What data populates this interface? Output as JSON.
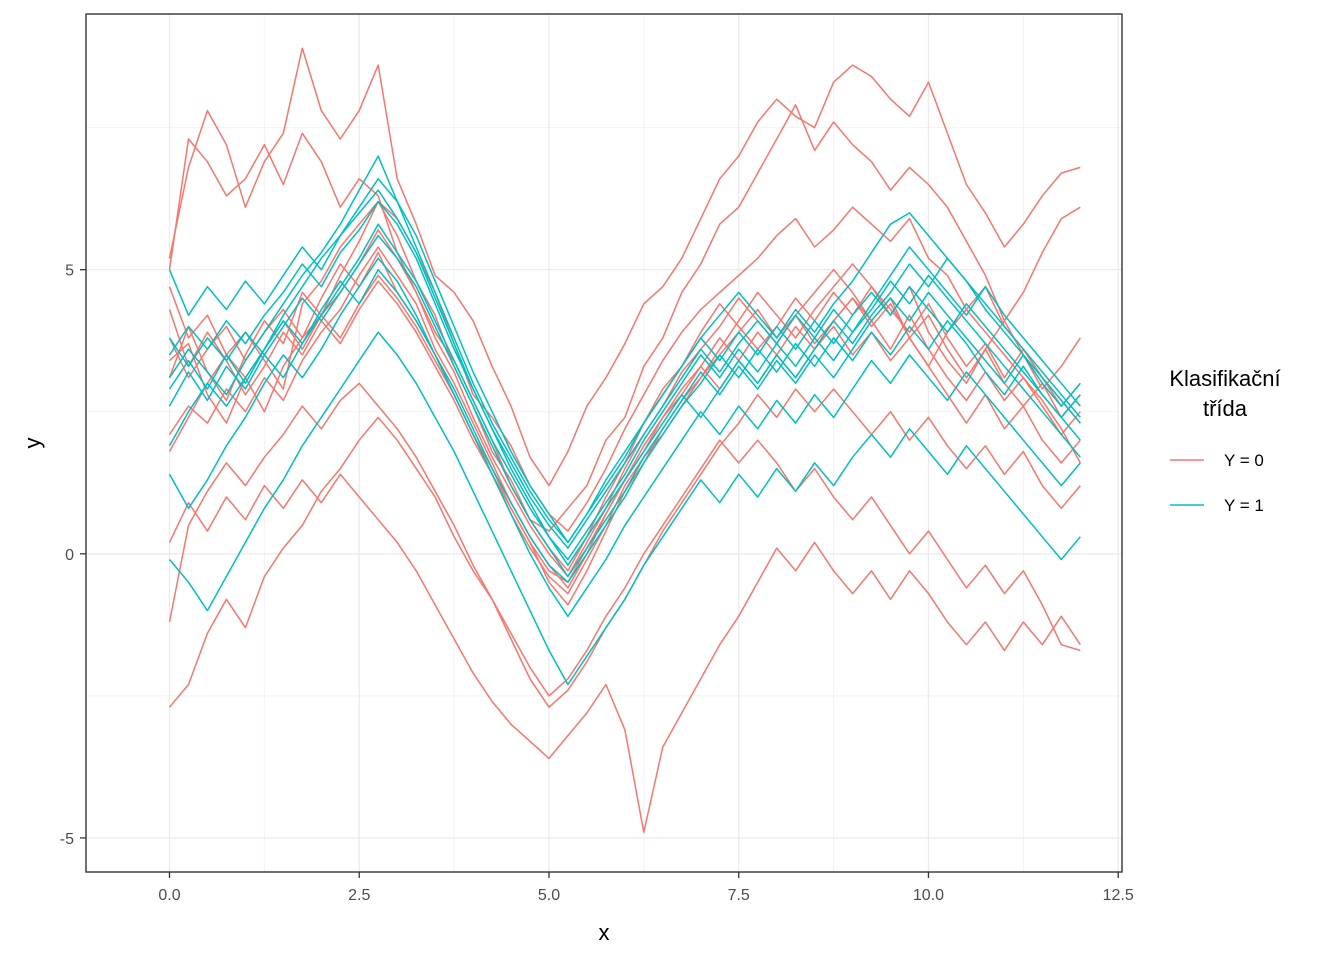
{
  "chart_data": {
    "type": "line",
    "xlabel": "x",
    "ylabel": "y",
    "xlim": [
      -1.1,
      12.55
    ],
    "ylim": [
      -5.6,
      9.5
    ],
    "x_ticks": [
      0,
      2.5,
      5,
      7.5,
      10,
      12.5
    ],
    "x_tick_labels": [
      "0.0",
      "2.5",
      "5.0",
      "7.5",
      "10.0",
      "12.5"
    ],
    "y_ticks": [
      -5,
      0,
      5
    ],
    "y_tick_labels": [
      "-5",
      "0",
      "5"
    ],
    "grid": true,
    "legend": {
      "title": "Klasifikační\ntřída",
      "position": "right",
      "entries": [
        {
          "label": "Y = 0",
          "color": "#F8766D"
        },
        {
          "label": "Y = 1",
          "color": "#00BFC4"
        }
      ]
    },
    "x_knots": [
      0,
      0.25,
      0.5,
      0.75,
      1,
      1.25,
      1.5,
      1.75,
      2,
      2.25,
      2.5,
      2.75,
      3,
      3.25,
      3.5,
      3.75,
      4,
      4.25,
      4.5,
      4.75,
      5,
      5.25,
      5.5,
      5.75,
      6,
      6.25,
      6.5,
      6.75,
      7,
      7.25,
      7.5,
      7.75,
      8,
      8.25,
      8.5,
      8.75,
      9,
      9.25,
      9.5,
      9.75,
      10,
      10.25,
      10.5,
      10.75,
      11,
      11.25,
      11.5,
      11.75,
      12
    ],
    "series": [
      {
        "class": "Y = 0",
        "values": [
          5.2,
          6.8,
          7.8,
          7.2,
          6.1,
          6.9,
          7.4,
          8.9,
          7.8,
          7.3,
          7.8,
          8.6,
          6.6,
          5.8,
          4.9,
          4.6,
          4.1,
          3.3,
          2.6,
          1.7,
          1.2,
          1.8,
          2.6,
          3.1,
          3.7,
          4.4,
          4.7,
          5.2,
          5.9,
          6.6,
          7.0,
          7.6,
          8.0,
          7.7,
          7.5,
          8.3,
          8.6,
          8.4,
          8.0,
          7.7,
          8.3,
          7.4,
          6.5,
          6.0,
          5.4,
          5.8,
          6.3,
          6.7,
          6.8
        ]
      },
      {
        "class": "Y = 0",
        "values": [
          5.0,
          7.3,
          6.9,
          6.3,
          6.6,
          7.2,
          6.5,
          7.4,
          6.9,
          6.1,
          6.6,
          6.3,
          5.3,
          4.6,
          3.9,
          3.4,
          2.7,
          2.0,
          1.2,
          0.6,
          0.4,
          0.8,
          1.2,
          2.0,
          2.4,
          3.3,
          3.8,
          4.6,
          5.1,
          5.8,
          6.1,
          6.7,
          7.3,
          7.9,
          7.1,
          7.6,
          7.2,
          6.9,
          6.4,
          6.8,
          6.5,
          6.1,
          5.5,
          4.9,
          4.1,
          4.6,
          5.3,
          5.9,
          6.1
        ]
      },
      {
        "class": "Y = 0",
        "values": [
          4.7,
          3.8,
          4.2,
          3.5,
          3.9,
          3.4,
          2.9,
          4.4,
          4.8,
          5.4,
          5.8,
          6.2,
          5.9,
          5.3,
          4.6,
          3.7,
          2.8,
          2.4,
          1.9,
          1.2,
          0.7,
          0.4,
          0.9,
          1.5,
          2.2,
          2.8,
          3.4,
          3.9,
          4.3,
          4.6,
          4.9,
          5.2,
          5.6,
          5.9,
          5.4,
          5.7,
          6.1,
          5.8,
          5.5,
          5.9,
          5.2,
          4.9,
          4.3,
          4.7,
          4.0,
          3.6,
          3.1,
          2.7,
          2.3
        ]
      },
      {
        "class": "Y = 0",
        "values": [
          3.4,
          3.7,
          2.8,
          2.3,
          3.1,
          2.5,
          3.3,
          3.8,
          4.2,
          4.6,
          5.1,
          5.7,
          5.2,
          4.6,
          3.8,
          3.2,
          2.4,
          1.7,
          1.1,
          0.5,
          0.0,
          -0.4,
          0.2,
          0.8,
          1.5,
          2.1,
          2.6,
          3.2,
          3.6,
          4.0,
          4.5,
          4.1,
          3.7,
          4.2,
          4.6,
          5.0,
          4.6,
          4.1,
          4.5,
          3.8,
          3.3,
          3.9,
          4.3,
          3.9,
          3.5,
          3.1,
          2.7,
          2.2,
          1.6
        ]
      },
      {
        "class": "Y = 0",
        "values": [
          3.8,
          3.1,
          3.6,
          4.0,
          3.4,
          3.9,
          4.3,
          3.8,
          4.5,
          5.1,
          4.7,
          5.3,
          4.6,
          4.1,
          3.5,
          2.8,
          2.1,
          1.4,
          0.8,
          0.2,
          -0.5,
          -0.9,
          -0.3,
          0.4,
          1.1,
          1.6,
          2.2,
          2.7,
          3.1,
          3.6,
          4.1,
          4.6,
          4.2,
          3.8,
          4.3,
          4.7,
          5.1,
          4.7,
          4.2,
          4.7,
          3.9,
          3.4,
          3.0,
          3.6,
          4.1,
          3.5,
          2.9,
          3.3,
          3.8
        ]
      },
      {
        "class": "Y = 0",
        "values": [
          3.1,
          4.0,
          3.2,
          2.7,
          3.5,
          4.1,
          3.7,
          4.6,
          4.2,
          4.9,
          5.5,
          6.2,
          5.6,
          4.8,
          4.2,
          3.3,
          2.6,
          1.8,
          1.3,
          0.6,
          0.1,
          -0.3,
          0.3,
          1.0,
          1.6,
          2.3,
          2.9,
          3.3,
          3.9,
          4.4,
          4.0,
          3.6,
          4.0,
          4.5,
          4.1,
          4.6,
          4.2,
          4.7,
          4.3,
          3.9,
          4.4,
          3.8,
          3.3,
          3.7,
          3.1,
          3.6,
          3.1,
          2.6,
          3.0
        ]
      },
      {
        "class": "Y = 0",
        "values": [
          2.1,
          2.6,
          2.3,
          2.9,
          2.5,
          3.1,
          2.7,
          3.4,
          3.9,
          4.3,
          4.9,
          5.4,
          4.9,
          4.4,
          3.6,
          3.0,
          2.3,
          1.6,
          0.9,
          0.3,
          -0.2,
          -0.6,
          0.0,
          0.7,
          1.3,
          1.8,
          2.4,
          2.9,
          3.3,
          3.8,
          3.4,
          3.9,
          3.5,
          4.0,
          3.6,
          4.1,
          4.5,
          4.1,
          3.6,
          4.2,
          3.6,
          3.1,
          2.7,
          3.2,
          2.7,
          3.1,
          2.6,
          2.1,
          2.5
        ]
      },
      {
        "class": "Y = 0",
        "values": [
          4.3,
          3.3,
          3.9,
          3.4,
          2.8,
          3.3,
          3.9,
          3.5,
          4.1,
          3.7,
          4.3,
          4.8,
          4.4,
          3.9,
          3.3,
          2.7,
          2.0,
          1.4,
          0.7,
          0.1,
          -0.4,
          -0.7,
          -0.1,
          0.5,
          1.2,
          1.7,
          2.1,
          2.6,
          3.1,
          3.5,
          3.9,
          4.3,
          3.8,
          4.2,
          3.7,
          4.1,
          4.5,
          4.0,
          4.4,
          3.8,
          4.2,
          3.6,
          3.1,
          3.6,
          3.0,
          2.6,
          3.0,
          2.4,
          2.8
        ]
      },
      {
        "class": "Y = 0",
        "values": [
          1.8,
          2.4,
          3.0,
          3.5,
          3.1,
          3.6,
          4.1,
          3.6,
          4.2,
          3.8,
          4.4,
          4.9,
          4.5,
          4.0,
          3.4,
          2.8,
          2.1,
          1.5,
          0.8,
          0.2,
          -0.3,
          -0.5,
          0.1,
          0.7,
          1.3,
          1.9,
          2.4,
          2.8,
          3.3,
          2.9,
          3.4,
          3.0,
          3.5,
          3.1,
          3.6,
          4.0,
          3.5,
          3.9,
          3.4,
          3.8,
          3.3,
          2.8,
          2.3,
          2.8,
          2.2,
          2.6,
          2.0,
          1.6,
          2.0
        ]
      },
      {
        "class": "Y = 0",
        "values": [
          -1.2,
          0.5,
          1.1,
          1.6,
          1.2,
          1.7,
          2.1,
          2.6,
          2.2,
          2.7,
          3.0,
          2.6,
          2.2,
          1.7,
          1.1,
          0.5,
          -0.2,
          -0.8,
          -1.5,
          -2.2,
          -2.7,
          -2.4,
          -1.9,
          -1.3,
          -0.8,
          -0.2,
          0.4,
          0.9,
          1.4,
          1.9,
          2.3,
          2.8,
          2.4,
          2.9,
          2.5,
          2.9,
          2.5,
          2.1,
          2.5,
          2.0,
          2.4,
          1.9,
          1.5,
          1.9,
          1.4,
          1.8,
          1.2,
          0.8,
          1.2
        ]
      },
      {
        "class": "Y = 0",
        "values": [
          -2.7,
          -2.3,
          -1.4,
          -0.8,
          -1.3,
          -0.4,
          0.1,
          0.5,
          1.1,
          1.5,
          2.0,
          2.4,
          2.0,
          1.5,
          1.0,
          0.3,
          -0.3,
          -0.8,
          -1.4,
          -2.0,
          -2.5,
          -2.2,
          -1.7,
          -1.1,
          -0.6,
          0.0,
          0.5,
          1.0,
          1.5,
          2.0,
          1.6,
          2.0,
          1.6,
          1.1,
          1.5,
          1.0,
          0.6,
          1.0,
          0.5,
          0.0,
          0.4,
          -0.1,
          -0.6,
          -0.2,
          -0.7,
          -0.3,
          -0.9,
          -1.6,
          -1.7
        ]
      },
      {
        "class": "Y = 0",
        "values": [
          0.2,
          0.9,
          0.4,
          1.0,
          0.6,
          1.2,
          0.8,
          1.3,
          0.9,
          1.4,
          1.0,
          0.6,
          0.2,
          -0.3,
          -0.9,
          -1.5,
          -2.1,
          -2.6,
          -3.0,
          -3.3,
          -3.6,
          -3.2,
          -2.8,
          -2.3,
          -3.1,
          -4.9,
          -3.4,
          -2.8,
          -2.2,
          -1.6,
          -1.1,
          -0.5,
          0.1,
          -0.3,
          0.2,
          -0.3,
          -0.7,
          -0.3,
          -0.8,
          -0.3,
          -0.7,
          -1.2,
          -1.6,
          -1.2,
          -1.7,
          -1.2,
          -1.6,
          -1.1,
          -1.6
        ]
      },
      {
        "class": "Y = 1",
        "values": [
          3.1,
          3.6,
          3.2,
          2.8,
          3.4,
          3.9,
          4.4,
          4.9,
          5.3,
          5.8,
          6.4,
          7.0,
          6.2,
          5.4,
          4.6,
          3.8,
          3.0,
          2.3,
          1.7,
          1.1,
          0.6,
          0.2,
          0.7,
          1.2,
          1.7,
          2.3,
          2.8,
          3.3,
          3.8,
          4.2,
          4.6,
          4.2,
          3.8,
          4.3,
          3.9,
          4.4,
          4.8,
          5.3,
          5.8,
          6.0,
          5.6,
          5.2,
          4.8,
          4.4,
          4.0,
          3.6,
          3.2,
          2.8,
          2.4
        ]
      },
      {
        "class": "Y = 1",
        "values": [
          3.5,
          4.0,
          3.6,
          4.1,
          3.7,
          4.2,
          4.6,
          5.1,
          4.7,
          5.3,
          5.7,
          6.2,
          5.8,
          5.2,
          4.4,
          3.6,
          2.9,
          2.2,
          1.6,
          1.0,
          0.5,
          0.1,
          0.6,
          1.1,
          1.6,
          2.1,
          2.6,
          3.1,
          3.6,
          3.2,
          3.7,
          4.1,
          3.7,
          4.2,
          3.8,
          4.3,
          3.9,
          4.4,
          4.9,
          5.4,
          5.0,
          4.6,
          4.2,
          4.7,
          4.2,
          3.8,
          3.4,
          3.0,
          2.6
        ]
      },
      {
        "class": "Y = 1",
        "values": [
          2.6,
          3.2,
          2.7,
          3.3,
          2.9,
          3.5,
          3.1,
          3.7,
          4.2,
          4.7,
          5.2,
          5.8,
          5.3,
          4.8,
          4.1,
          3.4,
          2.7,
          2.0,
          1.4,
          0.8,
          0.3,
          -0.1,
          0.4,
          0.9,
          1.4,
          2.0,
          2.5,
          3.0,
          3.5,
          3.1,
          3.6,
          3.2,
          3.7,
          3.3,
          3.8,
          3.4,
          3.9,
          4.3,
          4.8,
          4.4,
          4.9,
          4.5,
          4.1,
          3.7,
          3.3,
          2.9,
          2.5,
          2.1,
          1.7
        ]
      },
      {
        "class": "Y = 1",
        "values": [
          1.9,
          2.5,
          3.0,
          2.6,
          3.1,
          3.6,
          4.2,
          4.7,
          5.2,
          5.6,
          6.0,
          6.4,
          5.9,
          5.3,
          4.5,
          3.7,
          2.9,
          2.2,
          1.5,
          0.9,
          0.3,
          -0.2,
          0.3,
          0.8,
          1.3,
          1.8,
          2.3,
          2.8,
          2.4,
          2.9,
          3.4,
          3.0,
          3.5,
          3.1,
          3.6,
          4.1,
          3.7,
          4.2,
          4.6,
          5.1,
          4.7,
          5.2,
          4.8,
          4.3,
          3.9,
          3.5,
          3.1,
          2.7,
          2.3
        ]
      },
      {
        "class": "Y = 1",
        "values": [
          3.8,
          3.3,
          3.8,
          3.4,
          3.9,
          3.5,
          4.0,
          4.5,
          4.1,
          4.6,
          5.1,
          5.6,
          5.2,
          4.7,
          4.0,
          3.3,
          2.6,
          1.9,
          1.2,
          0.6,
          0.1,
          -0.4,
          0.1,
          0.6,
          1.1,
          1.7,
          2.2,
          2.7,
          3.2,
          2.8,
          3.3,
          2.9,
          3.4,
          3.0,
          3.5,
          3.1,
          3.6,
          4.1,
          4.5,
          4.1,
          4.6,
          4.2,
          3.8,
          3.4,
          3.0,
          3.5,
          3.0,
          2.6,
          3.0
        ]
      },
      {
        "class": "Y = 1",
        "values": [
          2.9,
          3.4,
          2.9,
          3.5,
          3.0,
          3.6,
          4.1,
          3.7,
          4.3,
          4.8,
          4.4,
          5.0,
          4.6,
          4.1,
          3.5,
          2.9,
          2.2,
          1.5,
          0.9,
          0.3,
          -0.2,
          -0.5,
          0.0,
          0.5,
          1.0,
          1.6,
          2.1,
          2.6,
          3.0,
          3.5,
          3.1,
          3.6,
          3.2,
          3.7,
          3.3,
          3.8,
          3.4,
          3.9,
          3.5,
          4.0,
          3.6,
          4.1,
          3.7,
          3.2,
          2.8,
          3.3,
          2.8,
          2.4,
          2.8
        ]
      },
      {
        "class": "Y = 1",
        "values": [
          5.0,
          4.2,
          4.7,
          4.3,
          4.8,
          4.4,
          4.9,
          5.4,
          5.0,
          5.6,
          6.1,
          6.6,
          6.2,
          5.6,
          4.8,
          4.0,
          3.2,
          2.5,
          1.8,
          1.2,
          0.7,
          0.2,
          0.7,
          1.3,
          1.8,
          2.3,
          2.8,
          3.3,
          3.8,
          3.4,
          3.9,
          3.5,
          4.0,
          3.6,
          4.1,
          3.7,
          4.2,
          4.6,
          4.2,
          4.7,
          4.3,
          3.9,
          4.4,
          4.0,
          3.6,
          3.2,
          2.8,
          2.4,
          2.0
        ]
      },
      {
        "class": "Y = 1",
        "values": [
          1.4,
          0.8,
          1.3,
          1.9,
          2.4,
          3.0,
          3.5,
          3.1,
          3.6,
          4.2,
          4.7,
          5.2,
          4.8,
          4.2,
          3.5,
          2.8,
          2.1,
          1.4,
          0.7,
          0.0,
          -0.6,
          -1.1,
          -0.6,
          -0.1,
          0.5,
          1.0,
          1.5,
          2.0,
          2.5,
          2.1,
          2.6,
          2.2,
          2.7,
          2.3,
          2.8,
          2.4,
          2.9,
          3.4,
          3.0,
          3.5,
          3.1,
          2.7,
          3.2,
          2.8,
          2.4,
          2.0,
          1.6,
          1.2,
          1.6
        ]
      },
      {
        "class": "Y = 1",
        "values": [
          -0.1,
          -0.5,
          -1.0,
          -0.4,
          0.2,
          0.8,
          1.3,
          1.9,
          2.4,
          2.9,
          3.4,
          3.9,
          3.5,
          3.0,
          2.4,
          1.8,
          1.1,
          0.4,
          -0.3,
          -1.0,
          -1.7,
          -2.3,
          -1.8,
          -1.3,
          -0.8,
          -0.2,
          0.3,
          0.8,
          1.3,
          0.9,
          1.4,
          1.0,
          1.5,
          1.1,
          1.6,
          1.2,
          1.7,
          2.1,
          1.7,
          2.2,
          1.8,
          1.4,
          1.9,
          1.5,
          1.1,
          0.7,
          0.3,
          -0.1,
          0.3
        ]
      }
    ]
  }
}
